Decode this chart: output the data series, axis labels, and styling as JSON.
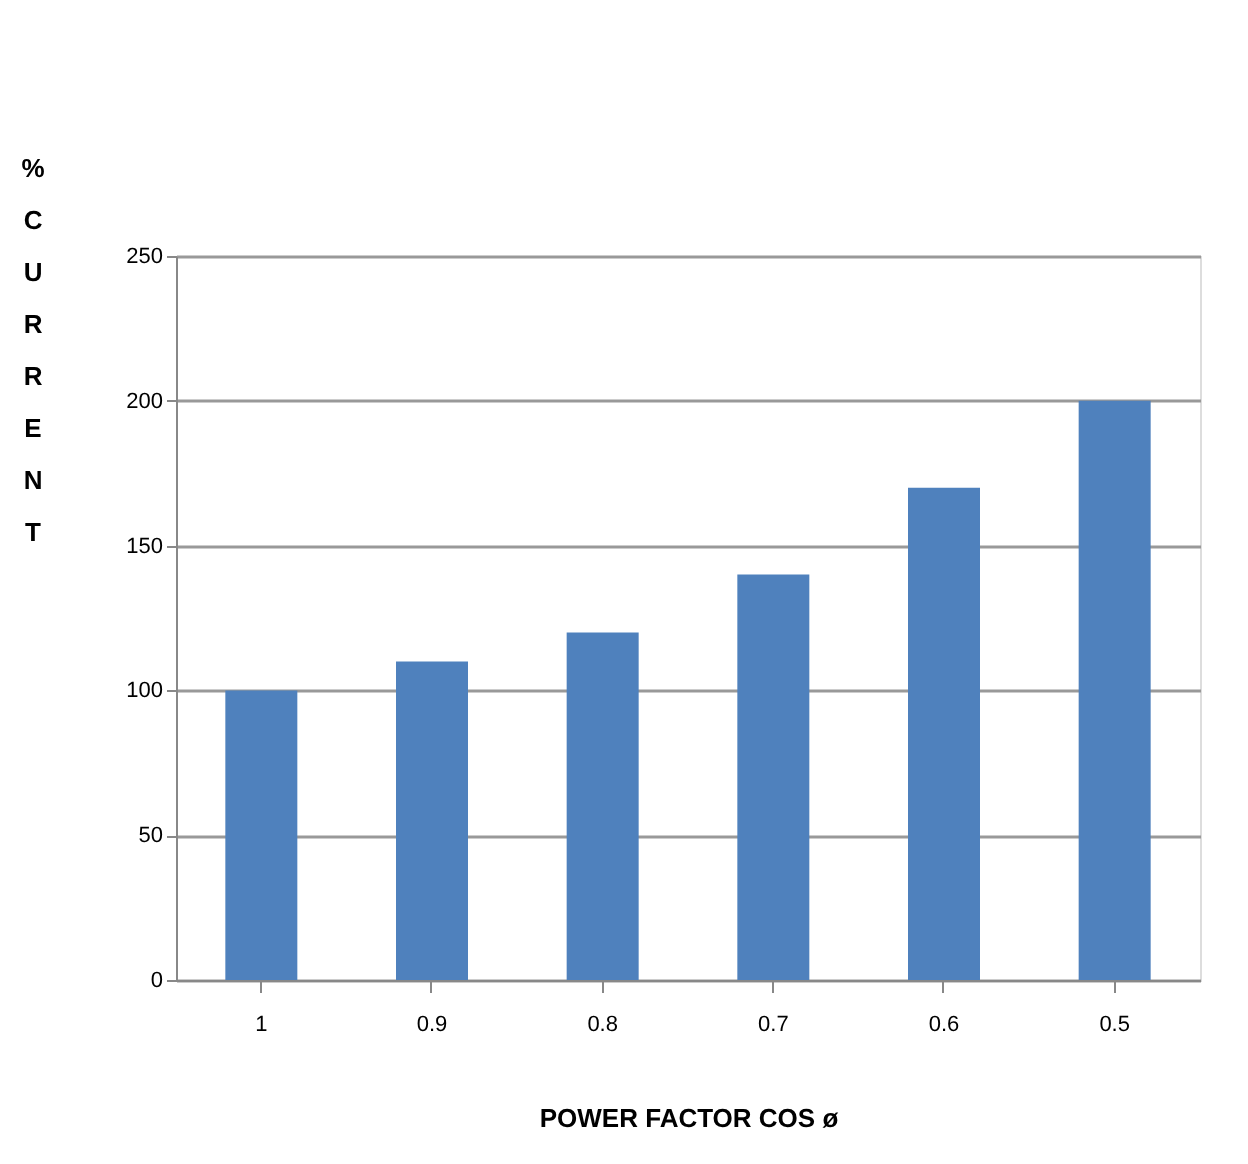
{
  "chart_data": {
    "type": "bar",
    "xlabel": "POWER FACTOR COS ø",
    "ylabel": "% CURRENT",
    "categories": [
      "1",
      "0.9",
      "0.8",
      "0.7",
      "0.6",
      "0.5"
    ],
    "values": [
      100,
      110,
      120,
      140,
      170,
      200
    ],
    "color": "#4f81bd",
    "ylim": [
      0,
      250
    ],
    "yticks": [
      0,
      50,
      100,
      150,
      200,
      250
    ],
    "grid": "y"
  }
}
